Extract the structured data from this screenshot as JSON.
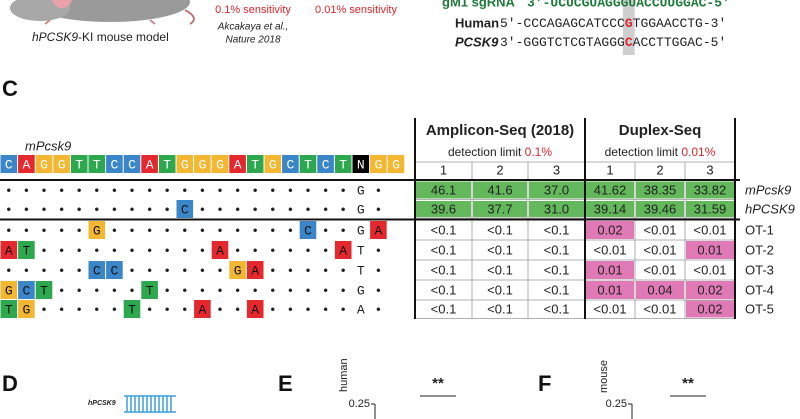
{
  "top": {
    "model_prefix": "hPCSK9",
    "model_suffix": "-KI mouse model",
    "sensitivity_1": "0.1% sensitivity",
    "citation_line_1": "Akcakaya et al.,",
    "citation_line_2": "Nature 2018",
    "sensitivity_2": "0.01% sensitivity",
    "sgrna_label": "gM1 sgRNA",
    "sgrna_seq": "3'-UCUCGUAGGGUACCUUGGAC-5'",
    "human_label": "Human",
    "human_seq": [
      "5'-CCCAGAGCATCCC",
      "G",
      "TGGAACCTG-3'"
    ],
    "pcsk9_label": "PCSK9",
    "pcsk9_seq": [
      "3'-GGGTCTCGTAGGG",
      "C",
      "ACCTTGGAC-5'"
    ]
  },
  "panel_c": {
    "label": "C",
    "reference_label": "mPcsk9",
    "reference": [
      "C",
      "A",
      "G",
      "G",
      "T",
      "T",
      "C",
      "C",
      "A",
      "T",
      "G",
      "G",
      "G",
      "A",
      "T",
      "G",
      "C",
      "T",
      "C",
      "T",
      "N",
      "G",
      "G"
    ],
    "base_colors": {
      "A": "#e5282e",
      "C": "#3b86c8",
      "G": "#f4b731",
      "T": "#2ea84e",
      "N": "#000000"
    },
    "sites": [
      [
        "•",
        "•",
        "•",
        "•",
        "•",
        "•",
        "•",
        "•",
        "•",
        "•",
        "•",
        "•",
        "•",
        "•",
        "•",
        "•",
        "•",
        "•",
        "•",
        "•",
        "G",
        "•",
        null
      ],
      [
        "•",
        "•",
        "•",
        "•",
        "•",
        "•",
        "•",
        "•",
        "•",
        "•",
        "C",
        "•",
        "•",
        "•",
        "•",
        "•",
        "•",
        "•",
        "•",
        "•",
        "G",
        "•",
        null
      ],
      [
        "•",
        "•",
        "•",
        "•",
        "•",
        "G",
        "•",
        "•",
        "•",
        "•",
        "•",
        "•",
        "•",
        "•",
        "•",
        "•",
        "•",
        "C",
        "•",
        "•",
        "G",
        "A",
        null
      ],
      [
        "A",
        "T",
        "•",
        "•",
        "•",
        "•",
        "•",
        "•",
        "•",
        "•",
        "•",
        "•",
        "A",
        "•",
        "•",
        "•",
        "•",
        "•",
        "•",
        "A",
        "T",
        "•",
        null
      ],
      [
        "•",
        "•",
        "•",
        "•",
        "•",
        "C",
        "C",
        "•",
        "•",
        "•",
        "•",
        "•",
        "•",
        "G",
        "A",
        "•",
        "•",
        "•",
        "•",
        "•",
        "T",
        "•",
        null
      ],
      [
        "G",
        "C",
        "T",
        "•",
        "•",
        "•",
        "•",
        "•",
        "T",
        "•",
        "•",
        "•",
        "•",
        "•",
        "•",
        "•",
        "•",
        "•",
        "•",
        "•",
        "G",
        "•",
        null
      ],
      [
        "T",
        "G",
        "•",
        "•",
        "•",
        "•",
        "•",
        "T",
        "•",
        "•",
        "•",
        "A",
        "•",
        "•",
        "A",
        "•",
        "•",
        "•",
        "•",
        "•",
        "A",
        "•",
        null
      ]
    ],
    "groups": [
      {
        "title": "Amplicon-Seq (2018)",
        "limit_text": "detection limit",
        "limit_value": "0.1%",
        "replicates": [
          "1",
          "2",
          "3"
        ]
      },
      {
        "title": "Duplex-Seq",
        "limit_text": "detection limit",
        "limit_value": "0.01%",
        "replicates": [
          "1",
          "2",
          "3"
        ]
      }
    ],
    "rows": [
      {
        "label": "mPcsk9",
        "values": [
          "46.1",
          "41.6",
          "37.0",
          "41.62",
          "38.35",
          "33.82"
        ],
        "cell_colors": [
          "#62b85a",
          "#62b85a",
          "#62b85a",
          "#62b85a",
          "#62b85a",
          "#62b85a"
        ]
      },
      {
        "label": "hPCSK9",
        "values": [
          "39.6",
          "37.7",
          "31.0",
          "39.14",
          "39.46",
          "31.59"
        ],
        "cell_colors": [
          "#62b85a",
          "#62b85a",
          "#62b85a",
          "#62b85a",
          "#62b85a",
          "#62b85a"
        ]
      },
      {
        "label": "OT-1",
        "values": [
          "<0.1",
          "<0.1",
          "<0.1",
          "0.02",
          "<0.01",
          "<0.01"
        ],
        "cell_colors": [
          null,
          null,
          null,
          "#e07ab6",
          null,
          null
        ]
      },
      {
        "label": "OT-2",
        "values": [
          "<0.1",
          "<0.1",
          "<0.1",
          "<0.01",
          "<0.01",
          "0.01"
        ],
        "cell_colors": [
          null,
          null,
          null,
          null,
          null,
          "#e07ab6"
        ]
      },
      {
        "label": "OT-3",
        "values": [
          "<0.1",
          "<0.1",
          "<0.1",
          "0.01",
          "<0.01",
          "<0.01"
        ],
        "cell_colors": [
          null,
          null,
          null,
          "#e07ab6",
          null,
          null
        ]
      },
      {
        "label": "OT-4",
        "values": [
          "<0.1",
          "<0.1",
          "<0.1",
          "0.01",
          "0.04",
          "0.02"
        ],
        "cell_colors": [
          null,
          null,
          null,
          "#e07ab6",
          "#e07ab6",
          "#e07ab6"
        ]
      },
      {
        "label": "OT-5",
        "values": [
          "<0.1",
          "<0.1",
          "<0.1",
          "<0.01",
          "<0.01",
          "0.02"
        ],
        "cell_colors": [
          null,
          null,
          null,
          null,
          null,
          "#e07ab6"
        ]
      }
    ]
  },
  "panel_d": {
    "label": "D",
    "construct": "hPCSK9"
  },
  "panel_e": {
    "label": "E",
    "y_label": "human",
    "tick": "0.25",
    "significance": "**"
  },
  "panel_f": {
    "label": "F",
    "y_label": "mouse",
    "tick": "0.25",
    "significance": "**"
  }
}
